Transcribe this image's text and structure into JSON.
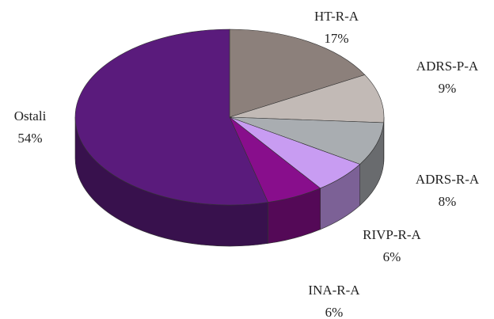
{
  "chart_data": {
    "type": "pie",
    "categories": [
      "HT-R-A",
      "ADRS-P-A",
      "ADRS-R-A",
      "RIVP-R-A",
      "INA-R-A",
      "Ostali"
    ],
    "values": [
      17,
      9,
      8,
      6,
      6,
      54
    ],
    "value_labels": [
      "17%",
      "9%",
      "8%",
      "6%",
      "6%",
      "54%"
    ],
    "colors": [
      "#8c807b",
      "#c2bab6",
      "#a9adb1",
      "#c89cf2",
      "#880e8c",
      "#5a1b7c"
    ]
  }
}
